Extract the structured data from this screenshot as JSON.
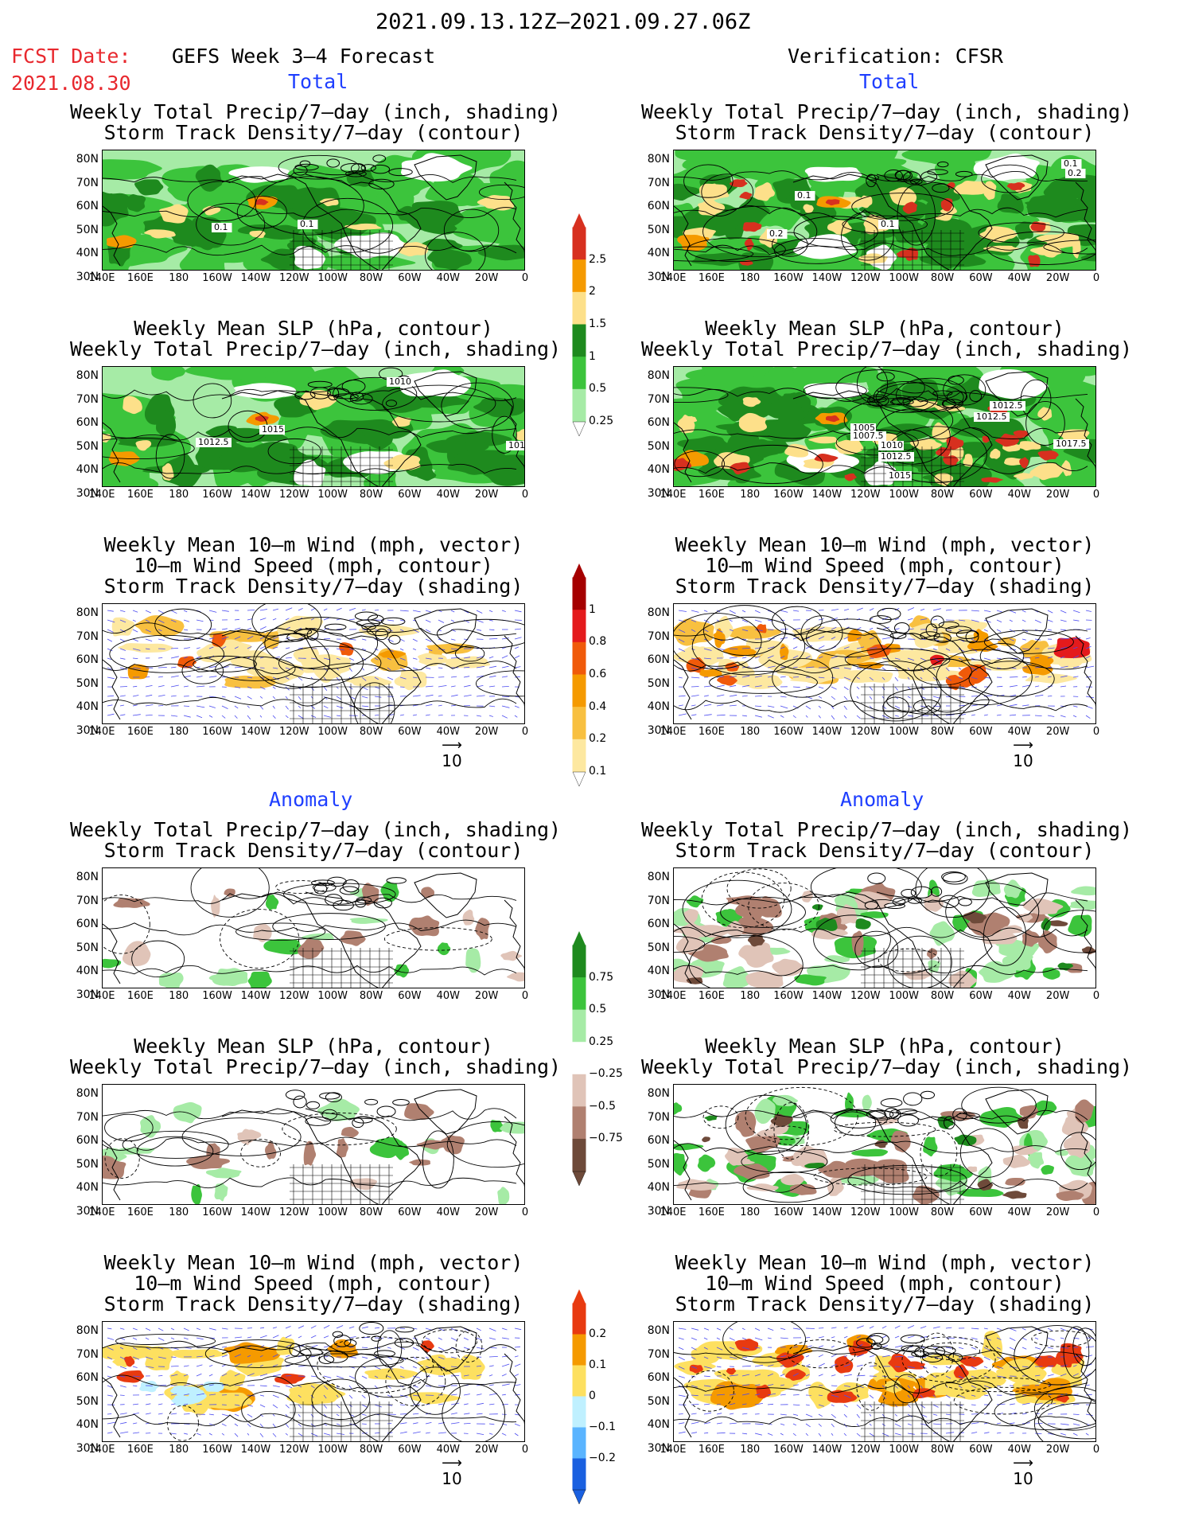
{
  "header": {
    "period": "2021.09.13.12Z–2021.09.27.06Z",
    "fcst_label": "FCST Date:",
    "fcst_date": "2021.08.30",
    "left_title": "GEFS Week 3–4 Forecast",
    "right_title": "Verification: CFSR"
  },
  "sections": {
    "total": "Total",
    "anomaly": "Anomaly"
  },
  "panel_titles": {
    "precip_storm": [
      "Weekly Total Precip/7–day (inch, shading)",
      "Storm Track Density/7–day (contour)"
    ],
    "slp_precip": [
      "Weekly Mean SLP (hPa, contour)",
      "Weekly Total Precip/7–day (inch, shading)"
    ],
    "wind": [
      "Weekly Mean 10–m Wind (mph, vector)",
      "10–m Wind Speed (mph, contour)",
      "Storm Track Density/7–day (shading)"
    ]
  },
  "axes": {
    "lat_labels": [
      "80N",
      "70N",
      "60N",
      "50N",
      "40N",
      "30N"
    ],
    "lon_labels": [
      "140E",
      "160E",
      "180",
      "160W",
      "140W",
      "120W",
      "100W",
      "80W",
      "60W",
      "40W",
      "20W",
      "0"
    ]
  },
  "vector_ref": "10",
  "colorbars": {
    "precip_total": {
      "labels": [
        "2.5",
        "2",
        "1.5",
        "1",
        "0.5",
        "0.25"
      ],
      "colors": [
        "#d7301f",
        "#f59a00",
        "#fde08a",
        "#1e8a1e",
        "#3cc43c",
        "#a6eba6"
      ]
    },
    "storm_total": {
      "labels": [
        "1",
        "0.8",
        "0.6",
        "0.4",
        "0.2",
        "0.1"
      ],
      "colors": [
        "#a50000",
        "#e41a1c",
        "#f05a0a",
        "#f59a00",
        "#f8c040",
        "#fde8a0"
      ]
    },
    "precip_anom": {
      "labels": [
        "0.75",
        "0.5",
        "0.25",
        "−0.25",
        "−0.5",
        "−0.75"
      ],
      "colors": [
        "#1e8a1e",
        "#3cc43c",
        "#a6eba6",
        "#ffffff",
        "#e0c4b8",
        "#b08070",
        "#6e4a3a"
      ]
    },
    "storm_anom": {
      "labels": [
        "0.2",
        "0.1",
        "0",
        "−0.1",
        "−0.2"
      ],
      "colors": [
        "#e83a10",
        "#f59a00",
        "#fde060",
        "#bff0ff",
        "#5ab4ff",
        "#1a60e0"
      ]
    }
  },
  "contour_labels": {
    "p1L": [
      "0.1",
      "0.1"
    ],
    "p1R": [
      "0.1",
      "0.2",
      "0.1",
      "0.1",
      "0.2"
    ],
    "p2L": [
      "1010",
      "1012.5",
      "1015",
      "101"
    ],
    "p2R": [
      "1012.5",
      "1012.5",
      "1005",
      "1007.5",
      "1010",
      "1012.5",
      "1015",
      "1017.5"
    ]
  },
  "colors": {
    "land_outline": "#000000",
    "wind_vector": "#4a4af0",
    "period_title": "#000000",
    "fcst": "#e8282e",
    "section": "#1f3fff"
  }
}
